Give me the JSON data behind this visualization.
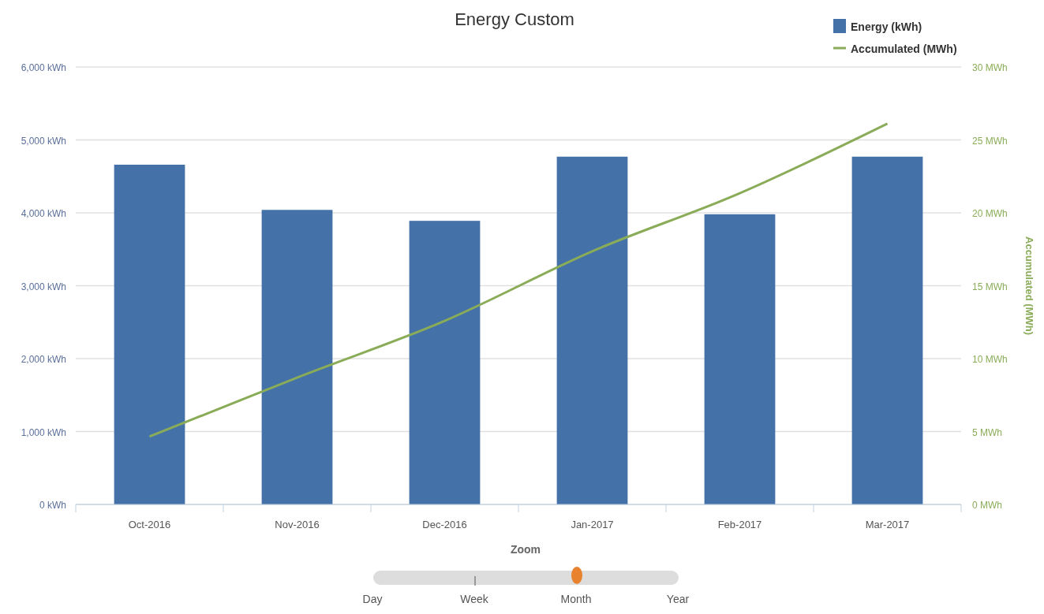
{
  "chart_data": {
    "type": "bar",
    "title": "Energy Custom",
    "y2label": "Accumulated (MWh)",
    "categories": [
      "Oct-2016",
      "Nov-2016",
      "Dec-2016",
      "Jan-2017",
      "Feb-2017",
      "Mar-2017"
    ],
    "series": [
      {
        "name": "Energy (kWh)",
        "color": "#4472a8",
        "values": [
          4660,
          4040,
          3890,
          4770,
          3980,
          4770
        ]
      },
      {
        "name": "Accumulated (MWh)",
        "type": "line",
        "axis": "y2",
        "color": "#8aac58",
        "values": [
          4.66,
          8.7,
          12.59,
          17.36,
          21.34,
          26.11
        ]
      }
    ],
    "ylim": [
      0,
      6000
    ],
    "yticks": [
      {
        "value": 0,
        "label": "0 kWh"
      },
      {
        "value": 1000,
        "label": "1,000 kWh"
      },
      {
        "value": 2000,
        "label": "2,000 kWh"
      },
      {
        "value": 3000,
        "label": "3,000 kWh"
      },
      {
        "value": 4000,
        "label": "4,000 kWh"
      },
      {
        "value": 5000,
        "label": "5,000 kWh"
      },
      {
        "value": 6000,
        "label": "6,000 kWh"
      }
    ],
    "y2lim": [
      0,
      30
    ],
    "y2ticks": [
      {
        "value": 0,
        "label": "0 MWh"
      },
      {
        "value": 5,
        "label": "5 MWh"
      },
      {
        "value": 10,
        "label": "10 MWh"
      },
      {
        "value": 15,
        "label": "15 MWh"
      },
      {
        "value": 20,
        "label": "20 MWh"
      },
      {
        "value": 25,
        "label": "25 MWh"
      },
      {
        "value": 30,
        "label": "30 MWh"
      }
    ],
    "grid": "y",
    "legend": "top right",
    "marker": "none",
    "line_style": "solid",
    "annotations": [
      "Zoom",
      "Day",
      "Week",
      "Month",
      "Year"
    ]
  }
}
